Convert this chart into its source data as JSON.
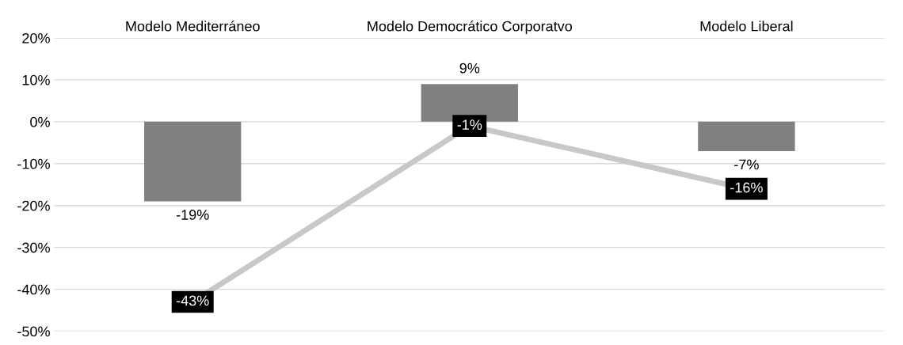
{
  "chart_data": {
    "type": "bar",
    "categories": [
      "Modelo Mediterráneo",
      "Modelo Democrático Corporatvo",
      "Modelo Liberal"
    ],
    "series": [
      {
        "color": "#808080",
        "values": [
          -19,
          9,
          -7
        ],
        "value_labels": [
          "-19%",
          "9%",
          "-7%"
        ]
      },
      {
        "type": "line",
        "color": "#c8c8c8",
        "values": [
          -43,
          -1,
          -16
        ],
        "value_labels": [
          "-43%",
          "-1%",
          "-16%"
        ],
        "line_style": "solid"
      }
    ],
    "ylim": [
      -50,
      20
    ],
    "yticks": [
      {
        "value": -50,
        "label": "-50%"
      },
      {
        "value": -40,
        "label": "-40%"
      },
      {
        "value": -30,
        "label": "-30%"
      },
      {
        "value": -20,
        "label": "-20%"
      },
      {
        "value": -10,
        "label": "-10%"
      },
      {
        "value": 0,
        "label": "0%"
      },
      {
        "value": 10,
        "label": "10%"
      },
      {
        "value": 20,
        "label": "20%"
      }
    ],
    "grid": "y",
    "legend": false
  }
}
